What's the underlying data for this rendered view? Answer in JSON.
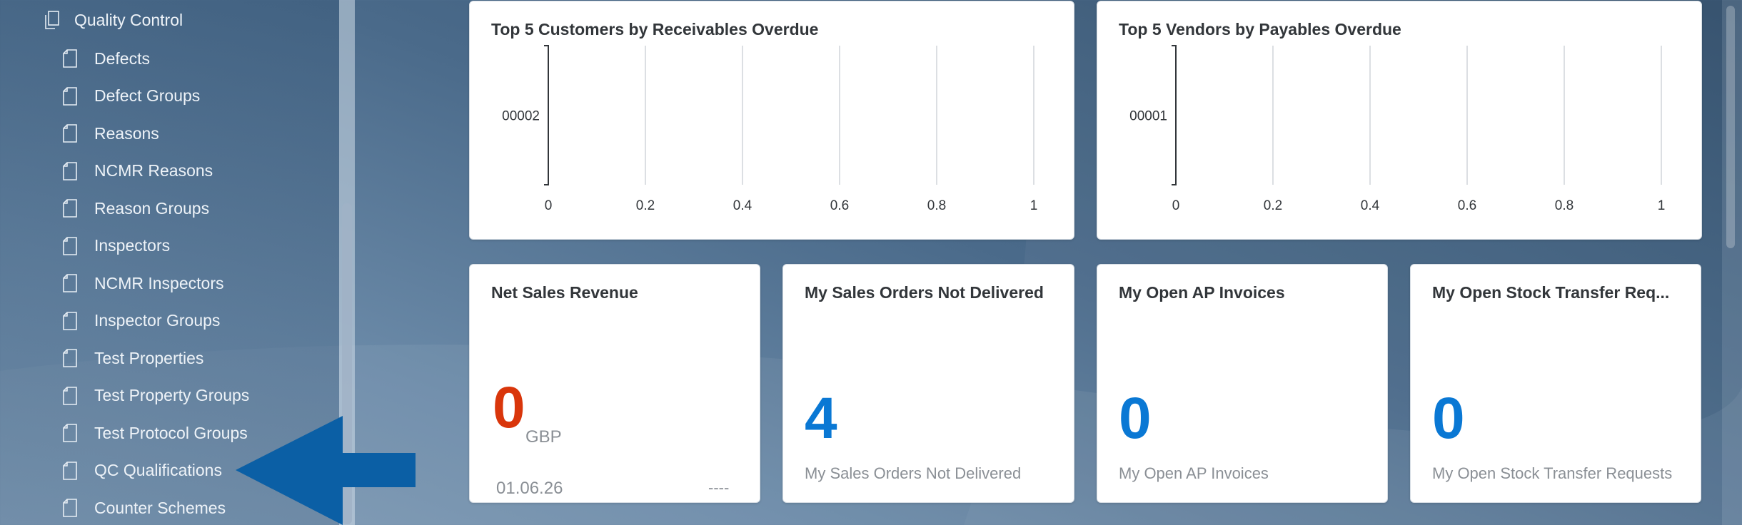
{
  "sidebar": {
    "header": {
      "label": "Quality Control",
      "icon": "folder-icon"
    },
    "items": [
      {
        "label": "Defects"
      },
      {
        "label": "Defect Groups"
      },
      {
        "label": "Reasons"
      },
      {
        "label": "NCMR Reasons"
      },
      {
        "label": "Reason Groups"
      },
      {
        "label": "Inspectors"
      },
      {
        "label": "NCMR Inspectors"
      },
      {
        "label": "Inspector Groups"
      },
      {
        "label": "Test Properties"
      },
      {
        "label": "Test Property Groups"
      },
      {
        "label": "Test Protocol Groups"
      },
      {
        "label": "QC Qualifications"
      },
      {
        "label": "Counter Schemes"
      }
    ],
    "item_icon": "document-icon"
  },
  "arrow": {
    "color": "#0b5fa5",
    "points_to": "QC Qualifications"
  },
  "cards": {
    "customers": {
      "title": "Top 5 Customers by Receivables Overdue"
    },
    "vendors": {
      "title": "Top 5 Vendors by Payables Overdue"
    },
    "net_sales": {
      "title": "Net Sales Revenue",
      "value": "0",
      "unit": "GBP",
      "date": "01.06.26",
      "trend": "----",
      "value_color": "#d9360b"
    },
    "sales_orders": {
      "title": "My Sales Orders Not Delivered",
      "value": "4",
      "subtitle": "My Sales Orders Not Delivered",
      "value_color": "#0a78d4"
    },
    "ap_invoices": {
      "title": "My Open AP Invoices",
      "value": "0",
      "subtitle": "My Open AP Invoices",
      "value_color": "#0a78d4"
    },
    "stock_transfer": {
      "title": "My Open Stock Transfer Req...",
      "value": "0",
      "subtitle": "My Open Stock Transfer Requests",
      "value_color": "#0a78d4"
    }
  },
  "chart_data": [
    {
      "type": "bar",
      "title": "Top 5 Customers by Receivables Overdue",
      "categories": [
        "00002"
      ],
      "values": [
        0
      ],
      "xlim": [
        0,
        1
      ],
      "x_ticks": [
        "0",
        "0.2",
        "0.4",
        "0.6",
        "0.8",
        "1"
      ],
      "orientation": "horizontal",
      "grid": true
    },
    {
      "type": "bar",
      "title": "Top 5 Vendors by Payables Overdue",
      "categories": [
        "00001"
      ],
      "values": [
        0
      ],
      "xlim": [
        0,
        1
      ],
      "x_ticks": [
        "0",
        "0.2",
        "0.4",
        "0.6",
        "0.8",
        "1"
      ],
      "orientation": "horizontal",
      "grid": true
    }
  ]
}
